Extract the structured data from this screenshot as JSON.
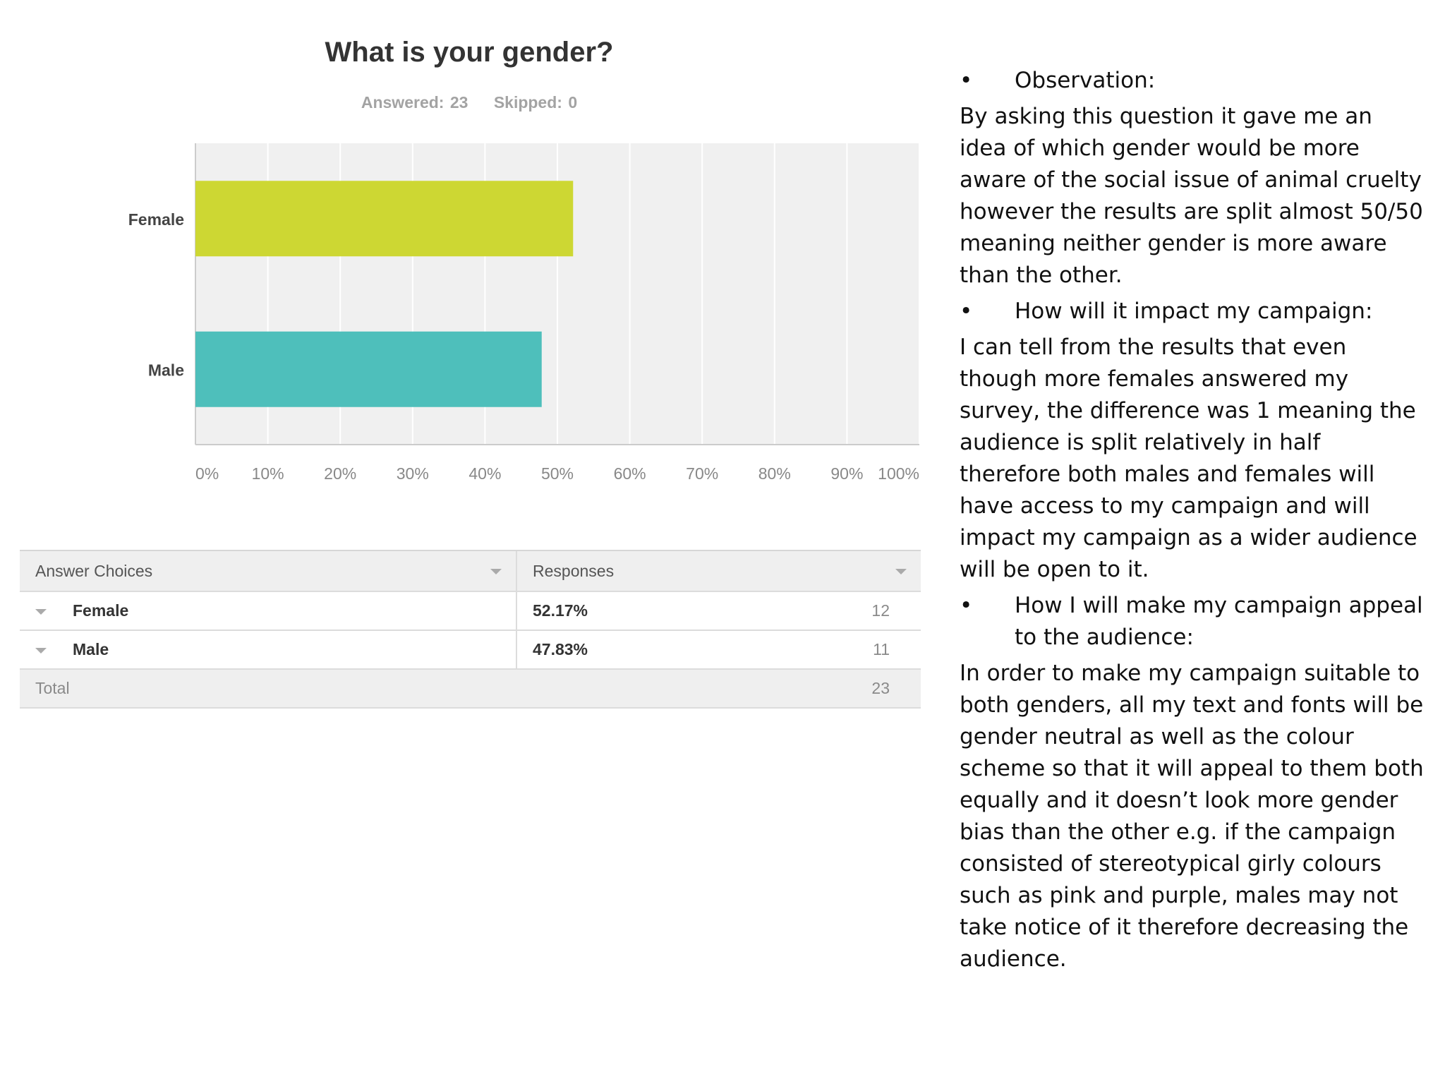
{
  "chart_data": {
    "type": "bar",
    "orientation": "horizontal",
    "title": "What is your gender?",
    "answered_label": "Answered: 23",
    "skipped_label": "Skipped: 0",
    "categories": [
      "Female",
      "Male"
    ],
    "values": [
      52.17,
      47.83
    ],
    "colors": [
      "#cdd733",
      "#4ebfbb"
    ],
    "xlim": [
      0,
      100
    ],
    "xticks": [
      "0%",
      "10%",
      "20%",
      "30%",
      "40%",
      "50%",
      "60%",
      "70%",
      "80%",
      "90%",
      "100%"
    ],
    "grid": true,
    "legend": "none"
  },
  "table": {
    "headers": [
      "Answer Choices",
      "Responses"
    ],
    "rows": [
      {
        "choice": "Female",
        "percent": "52.17%",
        "count": "12"
      },
      {
        "choice": "Male",
        "percent": "47.83%",
        "count": "11"
      }
    ],
    "total_label": "Total",
    "total_count": "23"
  },
  "notes": {
    "b1": "Observation:",
    "p1": "By asking this question it gave me an idea of which gender would be more aware of the social issue of animal cruelty however the results are split almost 50/50 meaning neither gender is more aware than the other.",
    "b2": "How will it impact my campaign:",
    "p2": "I can tell from the results that even though more females answered my survey, the difference was 1 meaning the audience is split relatively in half therefore both males and females will have access to my campaign and will impact my campaign as a wider audience will be open to it.",
    "b3": "How I will make my campaign appeal to the audience:",
    "p3": "In order to make my campaign suitable to both genders, all my text and fonts will be gender neutral as well as the colour scheme so that it will appeal to them both equally and it doesn’t look more gender bias than the other e.g. if the campaign consisted of stereotypical girly colours such as pink and purple, males may not take notice of it therefore decreasing the audience."
  }
}
